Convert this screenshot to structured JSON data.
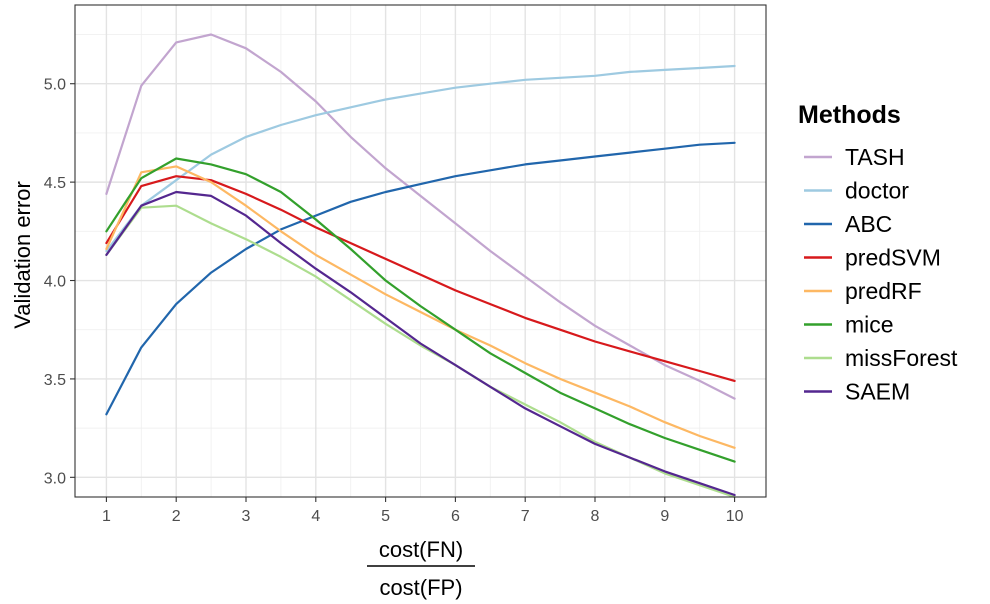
{
  "chart_data": {
    "type": "line",
    "title": "",
    "ylabel": "Validation error",
    "xlabel": {
      "numerator": "cost(FN)",
      "denominator": "cost(FP)"
    },
    "xlim": [
      0.55,
      10.45
    ],
    "ylim": [
      2.9,
      5.4
    ],
    "x_ticks": [
      1,
      2,
      3,
      4,
      5,
      6,
      7,
      8,
      9,
      10
    ],
    "y_ticks": [
      3.0,
      3.5,
      4.0,
      4.5,
      5.0
    ],
    "y_tick_labels": [
      "3.0",
      "3.5",
      "4.0",
      "4.5",
      "5.0"
    ],
    "grid": true,
    "legend": {
      "title": "Methods",
      "position": "right"
    },
    "x": [
      1,
      1.5,
      2,
      2.5,
      3,
      3.5,
      4,
      4.5,
      5,
      5.5,
      6,
      6.5,
      7,
      7.5,
      8,
      8.5,
      9,
      9.5,
      10
    ],
    "series": [
      {
        "name": "TASH",
        "color": "#c2a5cf",
        "values": [
          4.44,
          4.99,
          5.21,
          5.25,
          5.18,
          5.06,
          4.91,
          4.73,
          4.57,
          4.43,
          4.29,
          4.15,
          4.02,
          3.89,
          3.77,
          3.67,
          3.57,
          3.49,
          3.4
        ]
      },
      {
        "name": "doctor",
        "color": "#9ecae1",
        "values": [
          4.15,
          4.38,
          4.51,
          4.64,
          4.73,
          4.79,
          4.84,
          4.88,
          4.92,
          4.95,
          4.98,
          5.0,
          5.02,
          5.03,
          5.04,
          5.06,
          5.07,
          5.08,
          5.09
        ]
      },
      {
        "name": "ABC",
        "color": "#2166ac",
        "values": [
          3.32,
          3.66,
          3.88,
          4.04,
          4.16,
          4.26,
          4.33,
          4.4,
          4.45,
          4.49,
          4.53,
          4.56,
          4.59,
          4.61,
          4.63,
          4.65,
          4.67,
          4.69,
          4.7
        ]
      },
      {
        "name": "predSVM",
        "color": "#d7191c",
        "values": [
          4.19,
          4.48,
          4.53,
          4.51,
          4.44,
          4.36,
          4.27,
          4.19,
          4.11,
          4.03,
          3.95,
          3.88,
          3.81,
          3.75,
          3.69,
          3.64,
          3.59,
          3.54,
          3.49
        ]
      },
      {
        "name": "predRF",
        "color": "#fdb863",
        "values": [
          4.16,
          4.55,
          4.58,
          4.5,
          4.38,
          4.25,
          4.13,
          4.03,
          3.93,
          3.84,
          3.75,
          3.67,
          3.58,
          3.5,
          3.43,
          3.36,
          3.28,
          3.21,
          3.15
        ]
      },
      {
        "name": "mice",
        "color": "#33a02c",
        "values": [
          4.25,
          4.52,
          4.62,
          4.59,
          4.54,
          4.45,
          4.31,
          4.16,
          4.0,
          3.87,
          3.75,
          3.63,
          3.53,
          3.43,
          3.35,
          3.27,
          3.2,
          3.14,
          3.08
        ]
      },
      {
        "name": "missForest",
        "color": "#addd8e",
        "values": [
          4.13,
          4.37,
          4.38,
          4.29,
          4.21,
          4.12,
          4.02,
          3.9,
          3.78,
          3.67,
          3.57,
          3.46,
          3.37,
          3.28,
          3.18,
          3.1,
          3.02,
          2.96,
          2.9
        ]
      },
      {
        "name": "SAEM",
        "color": "#54278f",
        "values": [
          4.13,
          4.38,
          4.45,
          4.43,
          4.33,
          4.19,
          4.06,
          3.94,
          3.81,
          3.68,
          3.57,
          3.46,
          3.35,
          3.26,
          3.17,
          3.1,
          3.03,
          2.97,
          2.91
        ]
      }
    ]
  }
}
